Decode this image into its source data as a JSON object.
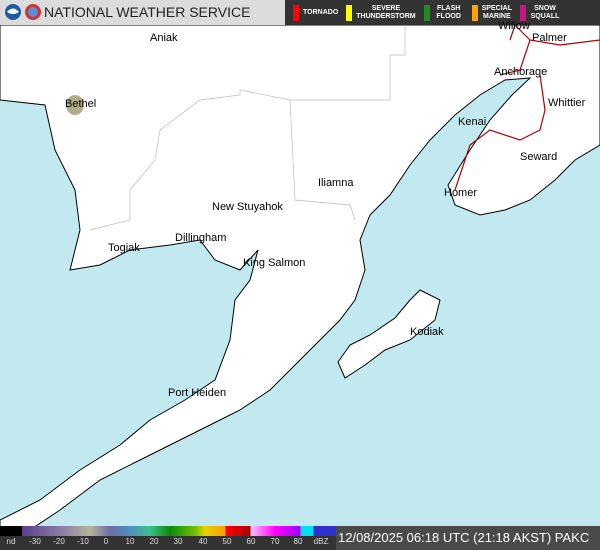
{
  "header": {
    "title": "NATIONAL WEATHER SERVICE",
    "warnings": [
      {
        "label": "TORNADO",
        "color": "#ff0000"
      },
      {
        "label": "SEVERE\nTHUNDERSTORM",
        "color": "#ffff00"
      },
      {
        "label": "FLASH\nFLOOD",
        "color": "#228b22"
      },
      {
        "label": "SPECIAL\nMARINE",
        "color": "#ffa500"
      },
      {
        "label": "SNOW\nSQUALL",
        "color": "#c71585"
      }
    ]
  },
  "map": {
    "places": [
      "Aniak",
      "Bethel",
      "Willow",
      "Palmer",
      "Anchorage",
      "Whittier",
      "Kenai",
      "Seward",
      "Iliamna",
      "Homer",
      "New Stuyahok",
      "Togiak",
      "Dillingham",
      "King Salmon",
      "Kodiak",
      "Port Heiden"
    ],
    "colors": {
      "water": "#c2e9f0",
      "land": "#ffffff",
      "coast": "#000000",
      "roads": "#b00000"
    }
  },
  "legend": {
    "ticks": [
      "nd",
      "-30",
      "-20",
      "-10",
      "0",
      "10",
      "20",
      "30",
      "40",
      "50",
      "60",
      "70",
      "80",
      "dBZ"
    ]
  },
  "timestamp": "12/08/2025 06:18 UTC (21:18 AKST)  PAKC"
}
